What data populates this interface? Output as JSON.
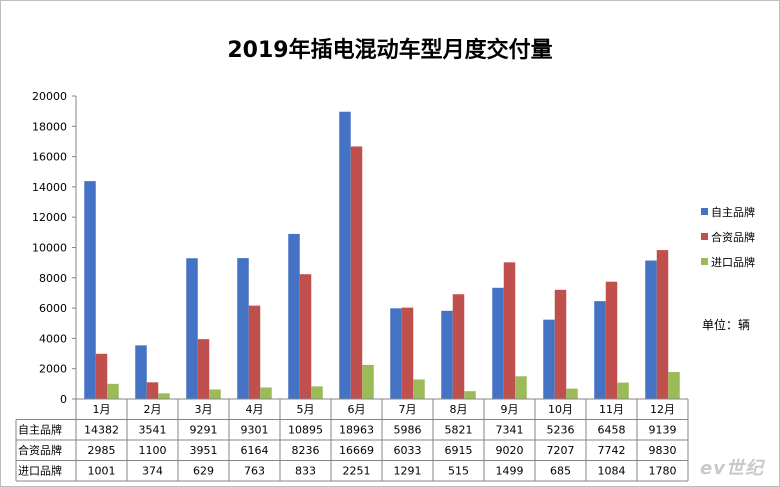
{
  "chart_data": {
    "type": "bar",
    "title": "2019年插电混动车型月度交付量",
    "categories": [
      "1月",
      "2月",
      "3月",
      "4月",
      "5月",
      "6月",
      "7月",
      "8月",
      "9月",
      "10月",
      "11月",
      "12月"
    ],
    "series": [
      {
        "name": "自主品牌",
        "color": "#4472c4",
        "values": [
          14382,
          3541,
          9291,
          9301,
          10895,
          18963,
          5986,
          5821,
          7341,
          5236,
          6458,
          9139
        ]
      },
      {
        "name": "合资品牌",
        "color": "#c0504d",
        "values": [
          2985,
          1100,
          3951,
          6164,
          8236,
          16669,
          6033,
          6915,
          9020,
          7207,
          7742,
          9830
        ]
      },
      {
        "name": "进口品牌",
        "color": "#9bbb59",
        "values": [
          1001,
          374,
          629,
          763,
          833,
          2251,
          1291,
          515,
          1499,
          685,
          1084,
          1780
        ]
      }
    ],
    "ylim": [
      0,
      20000
    ],
    "yticks": [
      0,
      2000,
      4000,
      6000,
      8000,
      10000,
      12000,
      14000,
      16000,
      18000,
      20000
    ],
    "grid": false,
    "legend_position": "right",
    "data_table": true,
    "unit_note": "单位：辆"
  },
  "watermark": "ev世纪"
}
